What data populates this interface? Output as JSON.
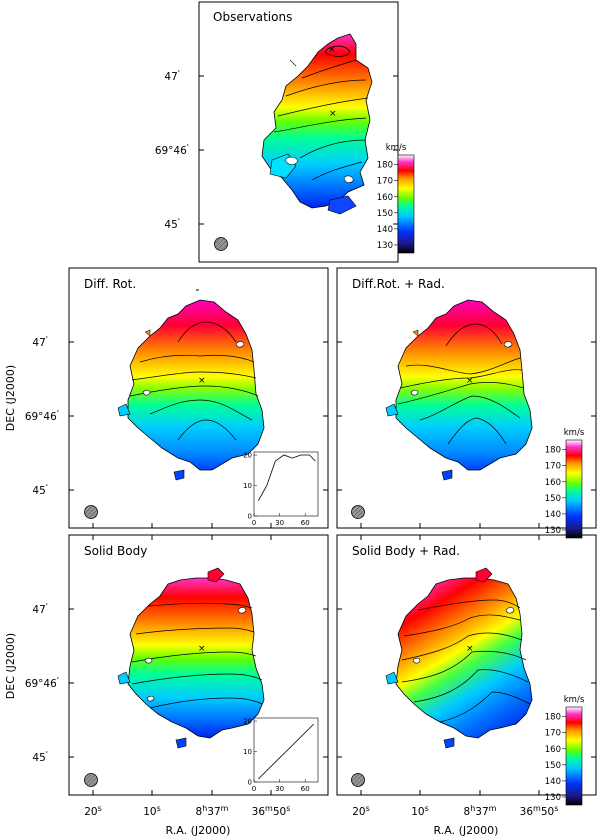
{
  "panels": [
    {
      "id": "obs",
      "title": "Observations"
    },
    {
      "id": "diff",
      "title": "Diff. Rot."
    },
    {
      "id": "diffrad",
      "title": "Diff.Rot. + Rad."
    },
    {
      "id": "solid",
      "title": "Solid Body"
    },
    {
      "id": "solidrad",
      "title": "Solid Body + Rad."
    }
  ],
  "axes": {
    "dec_label": "DEC (J2000)",
    "ra_label": "R.A. (J2000)",
    "dec_ticks": [
      {
        "main": "47",
        "sup": "'"
      },
      {
        "main": "69°46",
        "sup": "'"
      },
      {
        "main": "45",
        "sup": "'"
      }
    ],
    "ra_ticks": [
      {
        "main": "20",
        "sup": "s"
      },
      {
        "main": "10",
        "sup": "s"
      },
      {
        "main": "8",
        "sup": "h",
        "main2": "37",
        "sup2": "m"
      },
      {
        "main": "36",
        "sup": "m",
        "main2": "50",
        "sup2": "s"
      }
    ]
  },
  "colorbar": {
    "unit": "km/s",
    "ticks": [
      "180",
      "170",
      "160",
      "150",
      "140",
      "130"
    ],
    "range": [
      125,
      186
    ],
    "colors": [
      "#000000",
      "#1a1a8c",
      "#0033ff",
      "#00ccff",
      "#00ff99",
      "#66ff00",
      "#ffff00",
      "#ff9900",
      "#ff0000",
      "#ff33cc",
      "#ffffff"
    ]
  },
  "insets": [
    {
      "id": "diff",
      "type": "line",
      "x": [
        5,
        15,
        25,
        35,
        45,
        55,
        65,
        72
      ],
      "y": [
        5,
        10,
        18,
        20,
        19,
        20,
        20,
        18
      ],
      "xlim": [
        0,
        75
      ],
      "ylim": [
        0,
        21
      ],
      "xticks": [
        "0",
        "30",
        "60"
      ],
      "yticks": [
        "0",
        "10",
        "20"
      ]
    },
    {
      "id": "solid",
      "type": "line",
      "x": [
        5,
        70
      ],
      "y": [
        1,
        19
      ],
      "xlim": [
        0,
        75
      ],
      "ylim": [
        0,
        21
      ],
      "xticks": [
        "0",
        "30",
        "60"
      ],
      "yticks": [
        "0",
        "10",
        "20"
      ]
    }
  ]
}
